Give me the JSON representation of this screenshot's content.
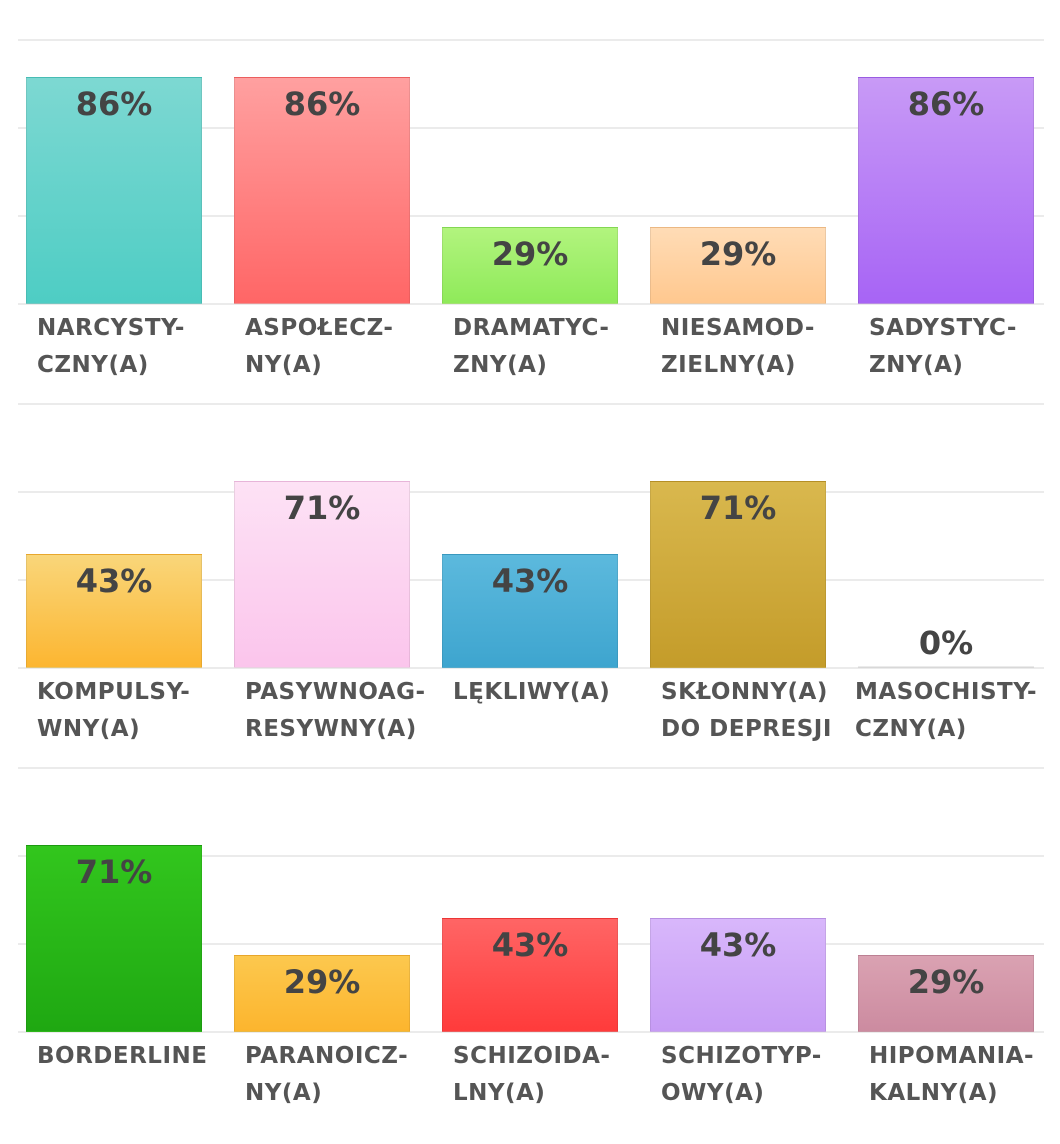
{
  "chart_data": [
    {
      "type": "bar",
      "ylim": [
        0,
        100
      ],
      "grid": true,
      "categories": [
        [
          "NARCYSTY-",
          "CZNY(A)"
        ],
        [
          "ASPOŁECZ-",
          "NY(A)"
        ],
        [
          "DRAMATYC-",
          "ZNY(A)"
        ],
        [
          "NIESAMOD-",
          "ZIELNY(A)"
        ],
        [
          "SADYSTYC-",
          "ZNY(A)"
        ]
      ],
      "values": [
        86,
        86,
        29,
        29,
        86
      ],
      "value_labels": [
        "86%",
        "86%",
        "29%",
        "29%",
        "86%"
      ],
      "colors": [
        [
          "#7dd8d2",
          "#4ecdc4"
        ],
        [
          "#ffa0a0",
          "#ff6666"
        ],
        [
          "#b2f47e",
          "#8fea5a"
        ],
        [
          "#ffdcb6",
          "#ffc88f"
        ],
        [
          "#c89af6",
          "#a764f5"
        ]
      ]
    },
    {
      "type": "bar",
      "ylim": [
        0,
        100
      ],
      "grid": true,
      "categories": [
        [
          "KOMPULSY-",
          "WNY(A)"
        ],
        [
          "PASYWNOAG-",
          "RESYWNY(A)"
        ],
        [
          "LĘKLIWY(A)",
          ""
        ],
        [
          "SKŁONNY(A)",
          "DO DEPRESJI"
        ],
        [
          "MASOCHISTY-",
          "CZNY(A)"
        ]
      ],
      "values": [
        43,
        71,
        43,
        71,
        0
      ],
      "value_labels": [
        "43%",
        "71%",
        "43%",
        "71%",
        "0%"
      ],
      "colors": [
        [
          "#f9d67a",
          "#fcb631"
        ],
        [
          "#fde2f5",
          "#fbc5ec"
        ],
        [
          "#5cb9dd",
          "#3ea5cf"
        ],
        [
          "#d9b84e",
          "#c49c2a"
        ],
        [
          "#c9ece8",
          "#c9ece8"
        ]
      ]
    },
    {
      "type": "bar",
      "ylim": [
        0,
        100
      ],
      "grid": true,
      "categories": [
        [
          "BORDERLINE",
          ""
        ],
        [
          "PARANOICZ-",
          "NY(A)"
        ],
        [
          "SCHIZOIDA-",
          "LNY(A)"
        ],
        [
          "SCHIZOTYP-",
          "OWY(A)"
        ],
        [
          "HIPOMANIA-",
          "KALNY(A)"
        ]
      ],
      "values": [
        71,
        29,
        43,
        43,
        29
      ],
      "value_labels": [
        "71%",
        "29%",
        "43%",
        "43%",
        "29%"
      ],
      "colors": [
        [
          "#32c61d",
          "#1fa812"
        ],
        [
          "#fcc84e",
          "#fcb52e"
        ],
        [
          "#ff6565",
          "#ff3b3b"
        ],
        [
          "#d8b7fb",
          "#c79cf5"
        ],
        [
          "#daa2b2",
          "#cc8ba0"
        ]
      ]
    }
  ]
}
